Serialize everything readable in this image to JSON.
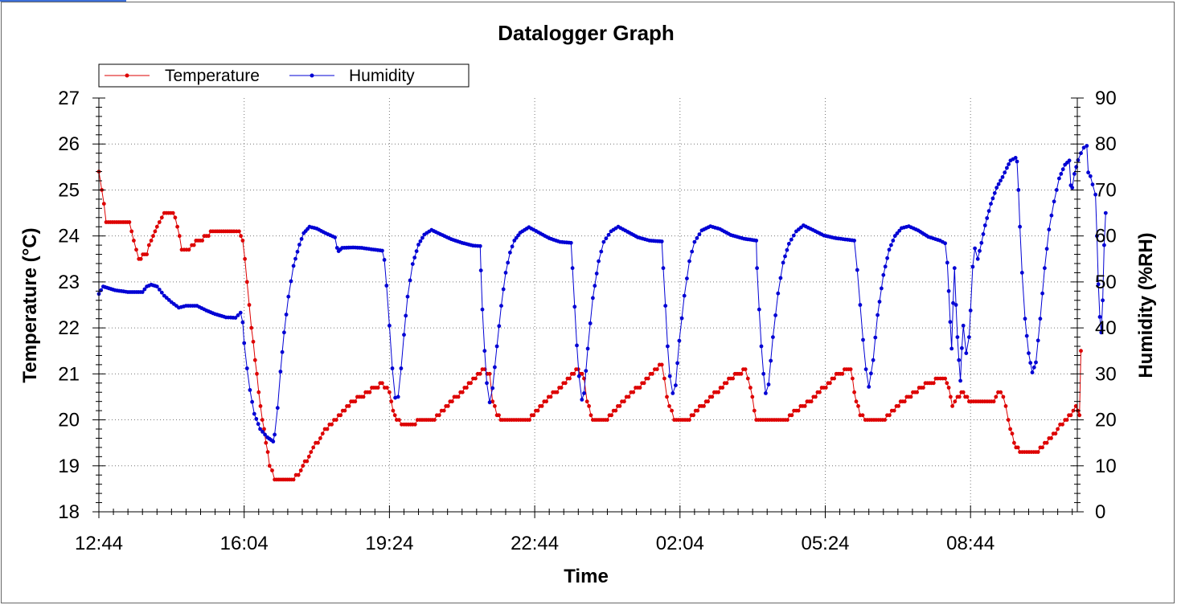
{
  "chart_data": {
    "type": "line",
    "title": "Datalogger Graph",
    "xlabel": "Time",
    "ylabel_left": "Temperature (°C)",
    "ylabel_right": "Humidity (%RH)",
    "x_ticks": [
      "12:44",
      "16:04",
      "19:24",
      "22:44",
      "02:04",
      "05:24",
      "08:44"
    ],
    "x_unit": "minutes since 12:44",
    "x_range": [
      0,
      1350
    ],
    "ylim_left": [
      18,
      27
    ],
    "yticks_left": [
      18,
      19,
      20,
      21,
      22,
      23,
      24,
      25,
      26,
      27
    ],
    "ylim_right": [
      0,
      90
    ],
    "yticks_right": [
      0,
      10,
      20,
      30,
      40,
      50,
      60,
      70,
      80,
      90
    ],
    "grid": true,
    "legend_position": "top-left",
    "series": [
      {
        "name": "Temperature",
        "axis": "left",
        "color": "#dd0000",
        "points": [
          [
            0,
            25.4
          ],
          [
            4,
            25.0
          ],
          [
            10,
            24.3
          ],
          [
            42,
            24.3
          ],
          [
            48,
            23.9
          ],
          [
            55,
            23.5
          ],
          [
            66,
            23.6
          ],
          [
            72,
            23.9
          ],
          [
            80,
            24.2
          ],
          [
            90,
            24.5
          ],
          [
            102,
            24.5
          ],
          [
            108,
            24.2
          ],
          [
            114,
            23.7
          ],
          [
            124,
            23.7
          ],
          [
            128,
            23.8
          ],
          [
            148,
            24.0
          ],
          [
            160,
            24.1
          ],
          [
            186,
            24.1
          ],
          [
            193,
            24.1
          ],
          [
            198,
            23.9
          ],
          [
            204,
            23.0
          ],
          [
            210,
            22.0
          ],
          [
            215,
            21.3
          ],
          [
            220,
            20.6
          ],
          [
            225,
            20.0
          ],
          [
            230,
            19.5
          ],
          [
            235,
            19.0
          ],
          [
            242,
            18.7
          ],
          [
            268,
            18.7
          ],
          [
            278,
            18.9
          ],
          [
            292,
            19.3
          ],
          [
            308,
            19.7
          ],
          [
            330,
            20.1
          ],
          [
            350,
            20.4
          ],
          [
            370,
            20.6
          ],
          [
            390,
            20.8
          ],
          [
            400,
            20.6
          ],
          [
            405,
            20.2
          ],
          [
            410,
            20.0
          ],
          [
            420,
            19.9
          ],
          [
            432,
            19.9
          ],
          [
            442,
            20.0
          ],
          [
            462,
            20.0
          ],
          [
            475,
            20.2
          ],
          [
            492,
            20.5
          ],
          [
            512,
            20.8
          ],
          [
            528,
            21.1
          ],
          [
            538,
            21.0
          ],
          [
            542,
            20.4
          ],
          [
            548,
            20.1
          ],
          [
            556,
            20.0
          ],
          [
            590,
            20.0
          ],
          [
            610,
            20.3
          ],
          [
            628,
            20.6
          ],
          [
            648,
            20.9
          ],
          [
            660,
            21.1
          ],
          [
            668,
            20.9
          ],
          [
            672,
            20.4
          ],
          [
            680,
            20.0
          ],
          [
            700,
            20.0
          ],
          [
            720,
            20.4
          ],
          [
            742,
            20.7
          ],
          [
            762,
            21.0
          ],
          [
            775,
            21.2
          ],
          [
            782,
            20.5
          ],
          [
            792,
            20.0
          ],
          [
            810,
            20.0
          ],
          [
            830,
            20.3
          ],
          [
            850,
            20.6
          ],
          [
            870,
            20.9
          ],
          [
            890,
            21.1
          ],
          [
            897,
            20.7
          ],
          [
            905,
            20.0
          ],
          [
            948,
            20.0
          ],
          [
            960,
            20.2
          ],
          [
            978,
            20.4
          ],
          [
            998,
            20.7
          ],
          [
            1018,
            21.0
          ],
          [
            1035,
            21.1
          ],
          [
            1040,
            20.6
          ],
          [
            1048,
            20.1
          ],
          [
            1055,
            20.0
          ],
          [
            1082,
            20.0
          ],
          [
            1098,
            20.3
          ],
          [
            1115,
            20.5
          ],
          [
            1132,
            20.7
          ],
          [
            1155,
            20.9
          ],
          [
            1165,
            20.9
          ],
          [
            1170,
            20.7
          ],
          [
            1175,
            20.3
          ],
          [
            1182,
            20.5
          ],
          [
            1190,
            20.6
          ],
          [
            1198,
            20.4
          ],
          [
            1232,
            20.4
          ],
          [
            1238,
            20.6
          ],
          [
            1245,
            20.5
          ],
          [
            1252,
            20.0
          ],
          [
            1260,
            19.5
          ],
          [
            1268,
            19.3
          ],
          [
            1290,
            19.3
          ],
          [
            1305,
            19.5
          ],
          [
            1320,
            19.8
          ],
          [
            1330,
            20.0
          ],
          [
            1338,
            20.1
          ],
          [
            1345,
            20.3
          ],
          [
            1350,
            20.1
          ],
          [
            1352,
            21.5
          ]
        ]
      },
      {
        "name": "Humidity",
        "axis": "right",
        "color": "#0000d4",
        "points": [
          [
            0,
            47.4
          ],
          [
            6,
            49.0
          ],
          [
            14,
            48.6
          ],
          [
            22,
            48.2
          ],
          [
            40,
            47.8
          ],
          [
            60,
            47.8
          ],
          [
            66,
            49.0
          ],
          [
            72,
            49.4
          ],
          [
            80,
            49.0
          ],
          [
            90,
            47.0
          ],
          [
            100,
            45.6
          ],
          [
            110,
            44.4
          ],
          [
            120,
            44.8
          ],
          [
            135,
            44.8
          ],
          [
            148,
            43.8
          ],
          [
            160,
            43.0
          ],
          [
            175,
            42.3
          ],
          [
            188,
            42.2
          ],
          [
            195,
            43.3
          ],
          [
            198,
            41.2
          ],
          [
            200,
            36.7
          ],
          [
            204,
            31.2
          ],
          [
            208,
            26.5
          ],
          [
            214,
            21.3
          ],
          [
            222,
            18.0
          ],
          [
            232,
            16.2
          ],
          [
            240,
            15.3
          ],
          [
            242,
            16.8
          ],
          [
            246,
            22.6
          ],
          [
            250,
            30.5
          ],
          [
            255,
            39.0
          ],
          [
            261,
            46.8
          ],
          [
            268,
            53.5
          ],
          [
            276,
            58.1
          ],
          [
            282,
            60.6
          ],
          [
            290,
            62.0
          ],
          [
            300,
            61.6
          ],
          [
            312,
            60.6
          ],
          [
            325,
            59.7
          ],
          [
            328,
            57.4
          ],
          [
            330,
            56.7
          ],
          [
            335,
            57.4
          ],
          [
            350,
            57.5
          ],
          [
            362,
            57.4
          ],
          [
            375,
            57.1
          ],
          [
            390,
            56.8
          ],
          [
            393,
            54.8
          ],
          [
            396,
            49.2
          ],
          [
            400,
            40.5
          ],
          [
            404,
            31.2
          ],
          [
            408,
            24.8
          ],
          [
            412,
            25.0
          ],
          [
            416,
            31.2
          ],
          [
            420,
            38.5
          ],
          [
            425,
            46.8
          ],
          [
            432,
            53.9
          ],
          [
            440,
            58.1
          ],
          [
            448,
            60.3
          ],
          [
            458,
            61.3
          ],
          [
            470,
            60.4
          ],
          [
            485,
            59.3
          ],
          [
            500,
            58.5
          ],
          [
            515,
            57.9
          ],
          [
            525,
            57.8
          ],
          [
            526,
            52.5
          ],
          [
            528,
            44.0
          ],
          [
            531,
            35.0
          ],
          [
            534,
            28.0
          ],
          [
            538,
            23.8
          ],
          [
            542,
            26.9
          ],
          [
            548,
            36.0
          ],
          [
            554,
            44.8
          ],
          [
            560,
            52.0
          ],
          [
            566,
            56.4
          ],
          [
            572,
            59.0
          ],
          [
            580,
            60.7
          ],
          [
            592,
            61.9
          ],
          [
            605,
            60.8
          ],
          [
            620,
            59.5
          ],
          [
            635,
            58.7
          ],
          [
            650,
            58.5
          ],
          [
            652,
            53.0
          ],
          [
            655,
            44.6
          ],
          [
            658,
            36.2
          ],
          [
            661,
            29.5
          ],
          [
            665,
            24.4
          ],
          [
            668,
            25.8
          ],
          [
            673,
            35.5
          ],
          [
            680,
            46.5
          ],
          [
            688,
            54.5
          ],
          [
            695,
            58.7
          ],
          [
            705,
            61.0
          ],
          [
            715,
            62.0
          ],
          [
            728,
            60.9
          ],
          [
            742,
            59.7
          ],
          [
            758,
            59.0
          ],
          [
            775,
            58.8
          ],
          [
            777,
            53.0
          ],
          [
            780,
            44.8
          ],
          [
            783,
            36.0
          ],
          [
            786,
            29.5
          ],
          [
            790,
            25.8
          ],
          [
            794,
            27.5
          ],
          [
            799,
            37.2
          ],
          [
            806,
            47.0
          ],
          [
            813,
            54.5
          ],
          [
            820,
            58.7
          ],
          [
            830,
            61.2
          ],
          [
            842,
            62.1
          ],
          [
            855,
            61.5
          ],
          [
            870,
            60.2
          ],
          [
            888,
            59.4
          ],
          [
            905,
            59.0
          ],
          [
            906,
            53.0
          ],
          [
            909,
            44.0
          ],
          [
            912,
            36.0
          ],
          [
            915,
            30.0
          ],
          [
            918,
            25.8
          ],
          [
            922,
            27.7
          ],
          [
            928,
            38.0
          ],
          [
            935,
            47.5
          ],
          [
            942,
            54.2
          ],
          [
            950,
            58.3
          ],
          [
            960,
            61.0
          ],
          [
            970,
            62.3
          ],
          [
            983,
            61.3
          ],
          [
            998,
            60.1
          ],
          [
            1015,
            59.5
          ],
          [
            1040,
            59.0
          ],
          [
            1044,
            52.6
          ],
          [
            1048,
            45.0
          ],
          [
            1052,
            37.4
          ],
          [
            1056,
            31.0
          ],
          [
            1060,
            27.2
          ],
          [
            1066,
            33.0
          ],
          [
            1072,
            42.8
          ],
          [
            1080,
            51.5
          ],
          [
            1088,
            57.0
          ],
          [
            1096,
            60.0
          ],
          [
            1105,
            61.7
          ],
          [
            1115,
            62.1
          ],
          [
            1128,
            61.2
          ],
          [
            1142,
            59.8
          ],
          [
            1158,
            59.0
          ],
          [
            1165,
            58.4
          ],
          [
            1168,
            54.2
          ],
          [
            1170,
            48.0
          ],
          [
            1172,
            41.3
          ],
          [
            1174,
            35.5
          ],
          [
            1176,
            45.4
          ],
          [
            1178,
            53.0
          ],
          [
            1180,
            45.0
          ],
          [
            1182,
            38.0
          ],
          [
            1184,
            33.0
          ],
          [
            1186,
            28.5
          ],
          [
            1188,
            35.6
          ],
          [
            1190,
            40.5
          ],
          [
            1194,
            34.5
          ],
          [
            1198,
            38.0
          ],
          [
            1200,
            43.8
          ],
          [
            1203,
            53.3
          ],
          [
            1206,
            57.3
          ],
          [
            1210,
            55.0
          ],
          [
            1215,
            58.5
          ],
          [
            1220,
            62.3
          ],
          [
            1228,
            67.0
          ],
          [
            1236,
            70.5
          ],
          [
            1244,
            72.8
          ],
          [
            1250,
            74.8
          ],
          [
            1255,
            76.4
          ],
          [
            1262,
            77.0
          ],
          [
            1264,
            76.2
          ],
          [
            1266,
            70.0
          ],
          [
            1268,
            62.0
          ],
          [
            1271,
            52.0
          ],
          [
            1275,
            42.0
          ],
          [
            1280,
            34.5
          ],
          [
            1285,
            30.3
          ],
          [
            1290,
            32.5
          ],
          [
            1296,
            42.0
          ],
          [
            1302,
            53.0
          ],
          [
            1308,
            61.4
          ],
          [
            1315,
            67.5
          ],
          [
            1322,
            72.5
          ],
          [
            1330,
            75.5
          ],
          [
            1336,
            76.4
          ],
          [
            1338,
            71.0
          ],
          [
            1340,
            70.5
          ],
          [
            1343,
            73.5
          ],
          [
            1348,
            76.5
          ],
          [
            1352,
            78.0
          ],
          [
            1356,
            79.2
          ],
          [
            1360,
            79.6
          ],
          [
            1362,
            73.8
          ],
          [
            1365,
            73.0
          ],
          [
            1368,
            71.2
          ],
          [
            1372,
            69.0
          ],
          [
            1374,
            60.0
          ],
          [
            1376,
            49.5
          ],
          [
            1378,
            42.4
          ],
          [
            1380,
            39.0
          ],
          [
            1382,
            46.0
          ],
          [
            1384,
            58.0
          ],
          [
            1386,
            65.0
          ]
        ]
      }
    ]
  }
}
